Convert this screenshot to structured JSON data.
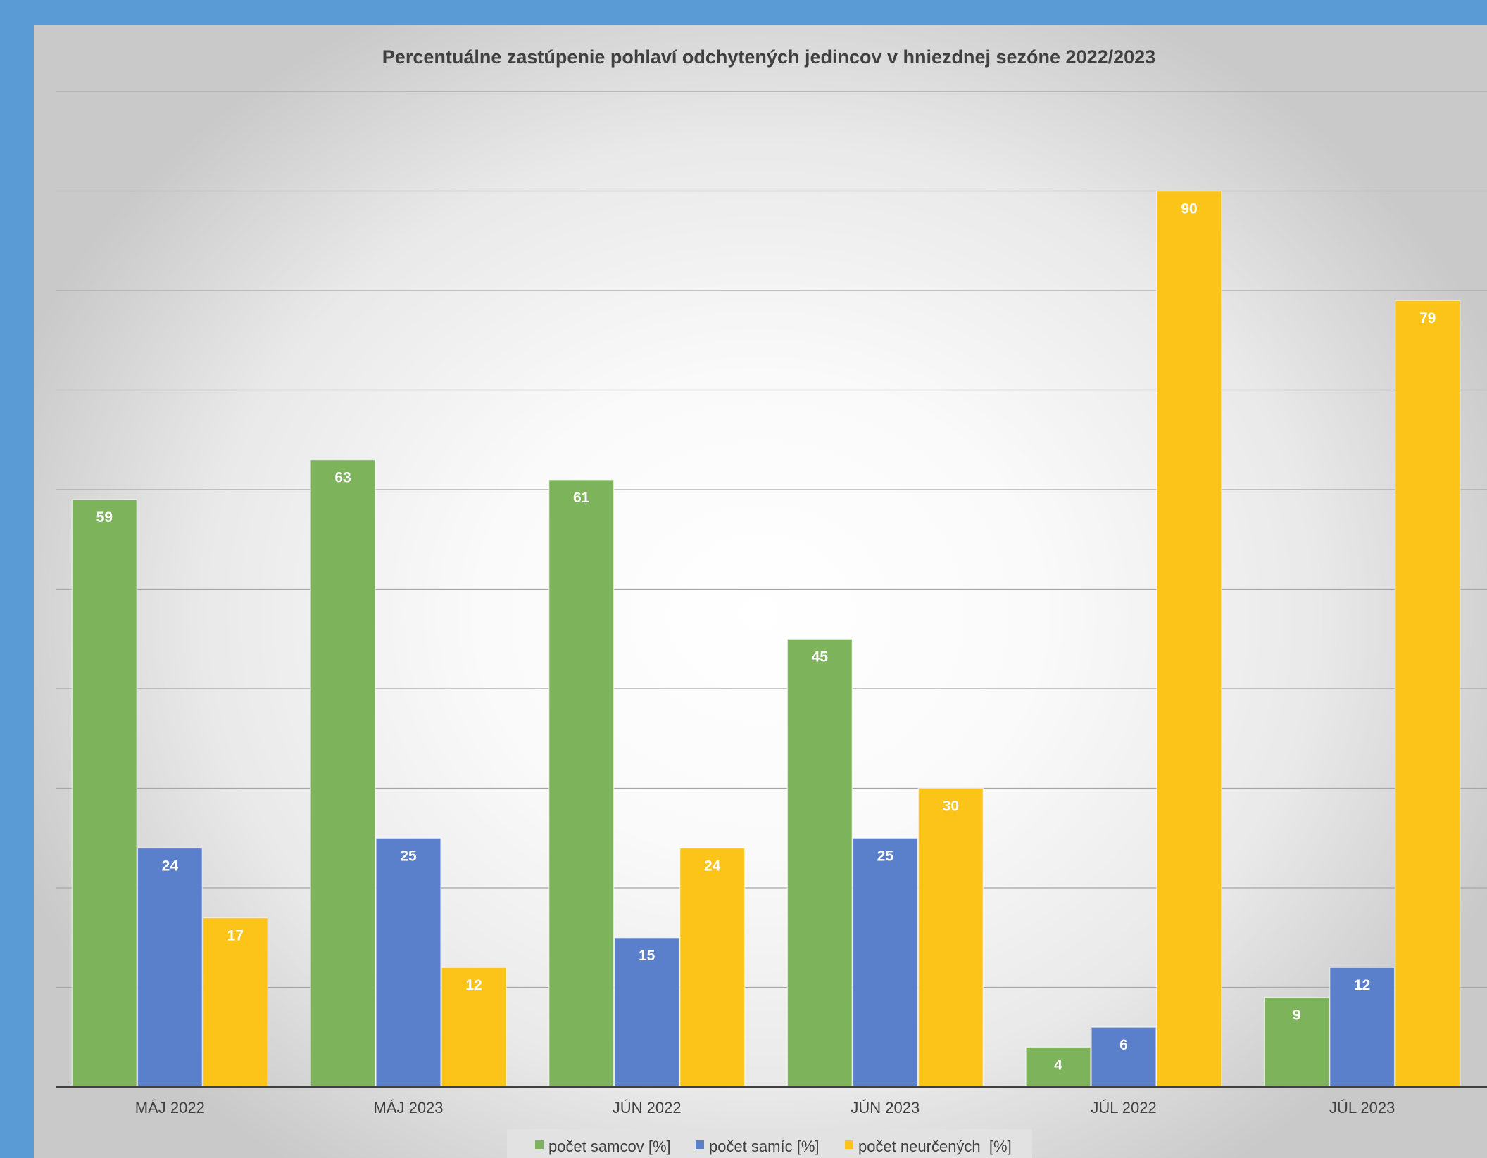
{
  "chart_data": {
    "type": "bar",
    "title": "Percentuálne zastúpenie pohlaví odchytených jedincov v hniezdnej sezóne 2022/2023",
    "categories": [
      "MÁJ 2022",
      "MÁJ 2023",
      "JÚN 2022",
      "JÚN 2023",
      "JÚL 2022",
      "JÚL 2023"
    ],
    "series": [
      {
        "name": "počet samcov [%]",
        "values": [
          59,
          63,
          61,
          45,
          4,
          9
        ],
        "color": "#7db35a"
      },
      {
        "name": "počet samíc [%]",
        "values": [
          24,
          25,
          15,
          25,
          6,
          12
        ],
        "color": "#5a7fcb"
      },
      {
        "name": "počet neurčených  [%]",
        "values": [
          17,
          12,
          24,
          30,
          90,
          79
        ],
        "color": "#fcc419"
      }
    ],
    "ylim": [
      0,
      100
    ],
    "grid": true,
    "legend_position": "bottom",
    "xlabel": "",
    "ylabel": ""
  }
}
